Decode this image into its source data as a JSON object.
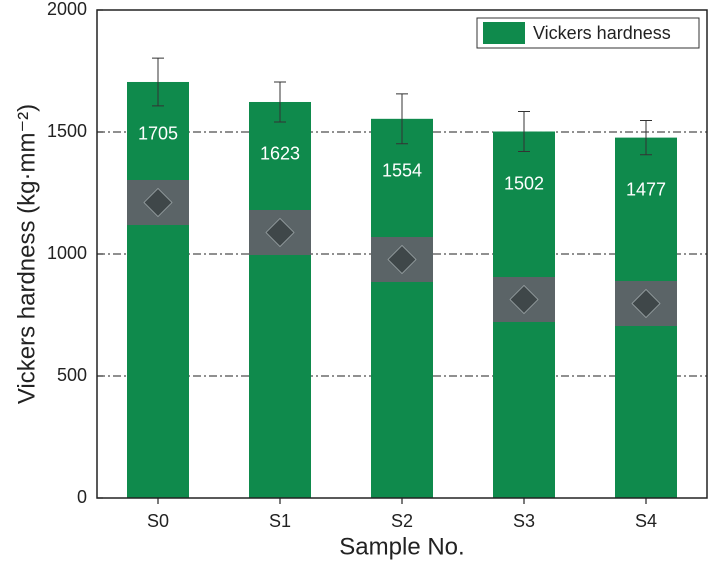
{
  "chart_data": {
    "type": "bar",
    "x_label": "Sample No.",
    "y_label": "Vickers hardness (kg·mm⁻²)",
    "categories": [
      "S0",
      "S1",
      "S2",
      "S3",
      "S4"
    ],
    "series": [
      {
        "name": "Vickers hardness",
        "color": "#0f8a4c",
        "values": [
          1705,
          1623,
          1554,
          1502,
          1477
        ],
        "errors": [
          98,
          82,
          102,
          82,
          70
        ]
      }
    ],
    "ylim": [
      0,
      2000
    ],
    "yticks": [
      0,
      500,
      1000,
      1500,
      2000
    ],
    "grid": true,
    "legend": "top-right"
  }
}
